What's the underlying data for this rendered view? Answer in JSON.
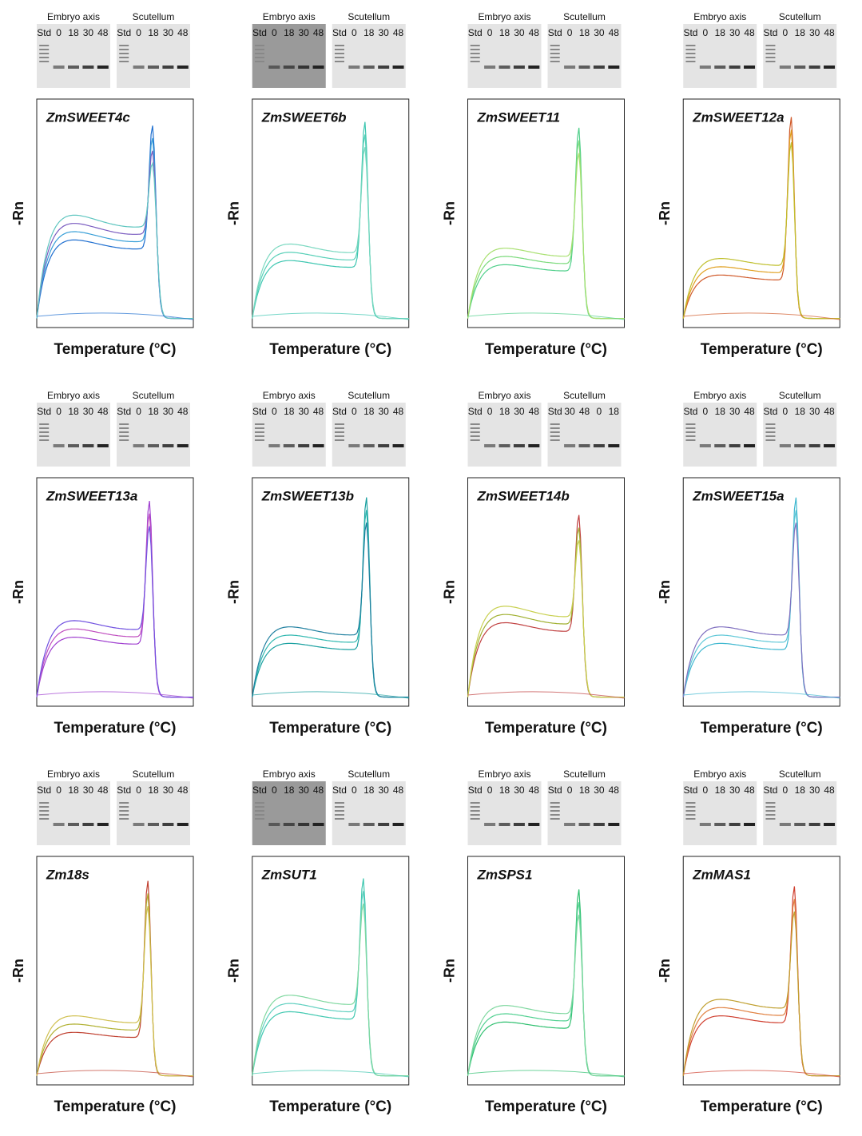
{
  "panels": [
    {
      "gene": "ZmSWEET4c",
      "y_label": "-Rn",
      "x_label": "Temperature (°C)",
      "gel": [
        {
          "title": "Embryo axis",
          "lanes": [
            "Std",
            "0",
            "18",
            "30",
            "48"
          ]
        },
        {
          "title": "Scutellum",
          "lanes": [
            "Std",
            "0",
            "18",
            "30",
            "48"
          ]
        }
      ]
    },
    {
      "gene": "ZmSWEET6b",
      "y_label": "-Rn",
      "x_label": "Temperature (°C)",
      "gel": [
        {
          "title": "Embryo axis",
          "lanes": [
            "Std",
            "0",
            "18",
            "30",
            "48"
          ]
        },
        {
          "title": "Scutellum",
          "lanes": [
            "Std",
            "0",
            "18",
            "30",
            "48"
          ]
        }
      ]
    },
    {
      "gene": "ZmSWEET11",
      "y_label": "-Rn",
      "x_label": "Temperature (°C)",
      "gel": [
        {
          "title": "Embryo axis",
          "lanes": [
            "Std",
            "0",
            "18",
            "30",
            "48"
          ]
        },
        {
          "title": "Scutellum",
          "lanes": [
            "Std",
            "0",
            "18",
            "30",
            "48"
          ]
        }
      ]
    },
    {
      "gene": "ZmSWEET12a",
      "y_label": "-Rn",
      "x_label": "Temperature (°C)",
      "gel": [
        {
          "title": "Embryo axis",
          "lanes": [
            "Std",
            "0",
            "18",
            "30",
            "48"
          ]
        },
        {
          "title": "Scutellum",
          "lanes": [
            "Std",
            "0",
            "18",
            "30",
            "48"
          ]
        }
      ]
    },
    {
      "gene": "ZmSWEET13a",
      "y_label": "-Rn",
      "x_label": "Temperature (°C)",
      "gel": [
        {
          "title": "Embryo axis",
          "lanes": [
            "Std",
            "0",
            "18",
            "30",
            "48"
          ]
        },
        {
          "title": "Scutellum",
          "lanes": [
            "Std",
            "0",
            "18",
            "30",
            "48"
          ]
        }
      ]
    },
    {
      "gene": "ZmSWEET13b",
      "y_label": "-Rn",
      "x_label": "Temperature (°C)",
      "gel": [
        {
          "title": "Embryo axis",
          "lanes": [
            "Std",
            "0",
            "18",
            "30",
            "48"
          ]
        },
        {
          "title": "Scutellum",
          "lanes": [
            "Std",
            "0",
            "18",
            "30",
            "48"
          ]
        }
      ]
    },
    {
      "gene": "ZmSWEET14b",
      "y_label": "-Rn",
      "x_label": "Temperature (°C)",
      "gel": [
        {
          "title": "Embryo axis",
          "lanes": [
            "Std",
            "0",
            "18",
            "30",
            "48"
          ]
        },
        {
          "title": "Scutellum",
          "lanes": [
            "Std",
            "30",
            "48",
            "0",
            "18"
          ]
        }
      ]
    },
    {
      "gene": "ZmSWEET15a",
      "y_label": "-Rn",
      "x_label": "Temperature (°C)",
      "gel": [
        {
          "title": "Embryo axis",
          "lanes": [
            "Std",
            "0",
            "18",
            "30",
            "48"
          ]
        },
        {
          "title": "Scutellum",
          "lanes": [
            "Std",
            "0",
            "18",
            "30",
            "48"
          ]
        }
      ]
    },
    {
      "gene": "Zm18s",
      "y_label": "-Rn",
      "x_label": "Temperature (°C)",
      "gel": [
        {
          "title": "Embryo axis",
          "lanes": [
            "Std",
            "0",
            "18",
            "30",
            "48"
          ]
        },
        {
          "title": "Scutellum",
          "lanes": [
            "Std",
            "0",
            "18",
            "30",
            "48"
          ]
        }
      ]
    },
    {
      "gene": "ZmSUT1",
      "y_label": "-Rn",
      "x_label": "Temperature (°C)",
      "gel": [
        {
          "title": "Embryo axis",
          "lanes": [
            "Std",
            "0",
            "18",
            "30",
            "48"
          ]
        },
        {
          "title": "Scutellum",
          "lanes": [
            "Std",
            "0",
            "18",
            "30",
            "48"
          ]
        }
      ]
    },
    {
      "gene": "ZmSPS1",
      "y_label": "-Rn",
      "x_label": "Temperature (°C)",
      "gel": [
        {
          "title": "Embryo axis",
          "lanes": [
            "Std",
            "0",
            "18",
            "30",
            "48"
          ]
        },
        {
          "title": "Scutellum",
          "lanes": [
            "Std",
            "0",
            "18",
            "30",
            "48"
          ]
        }
      ]
    },
    {
      "gene": "ZmMAS1",
      "y_label": "-Rn",
      "x_label": "Temperature (°C)",
      "gel": [
        {
          "title": "Embryo axis",
          "lanes": [
            "Std",
            "0",
            "18",
            "30",
            "48"
          ]
        },
        {
          "title": "Scutellum",
          "lanes": [
            "Std",
            "0",
            "18",
            "30",
            "48"
          ]
        }
      ]
    }
  ]
}
